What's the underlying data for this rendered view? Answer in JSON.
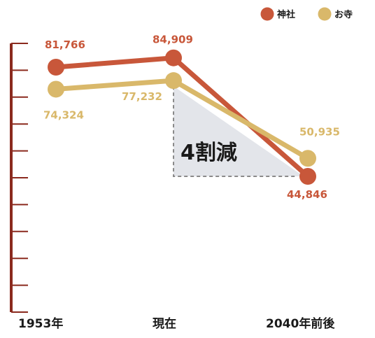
{
  "chart_data": {
    "type": "line",
    "categories": [
      "1953年",
      "現在",
      "2040年前後"
    ],
    "series": [
      {
        "name": "神社",
        "color": "#c8573a",
        "values": [
          81766,
          84909,
          44846
        ],
        "labels": [
          "81,766",
          "84,909",
          "44,846"
        ]
      },
      {
        "name": "お寺",
        "color": "#d9b86a",
        "values": [
          74324,
          77232,
          50935
        ],
        "labels": [
          "74,324",
          "77,232",
          "50,935"
        ]
      }
    ],
    "annotation": "4割減",
    "annotation_box_color": "#e3e5ea",
    "axis_color": "#8b2a1e",
    "ylim": [
      0,
      100000
    ],
    "yticks": 10,
    "grid": false,
    "legend_position": "top-right"
  }
}
